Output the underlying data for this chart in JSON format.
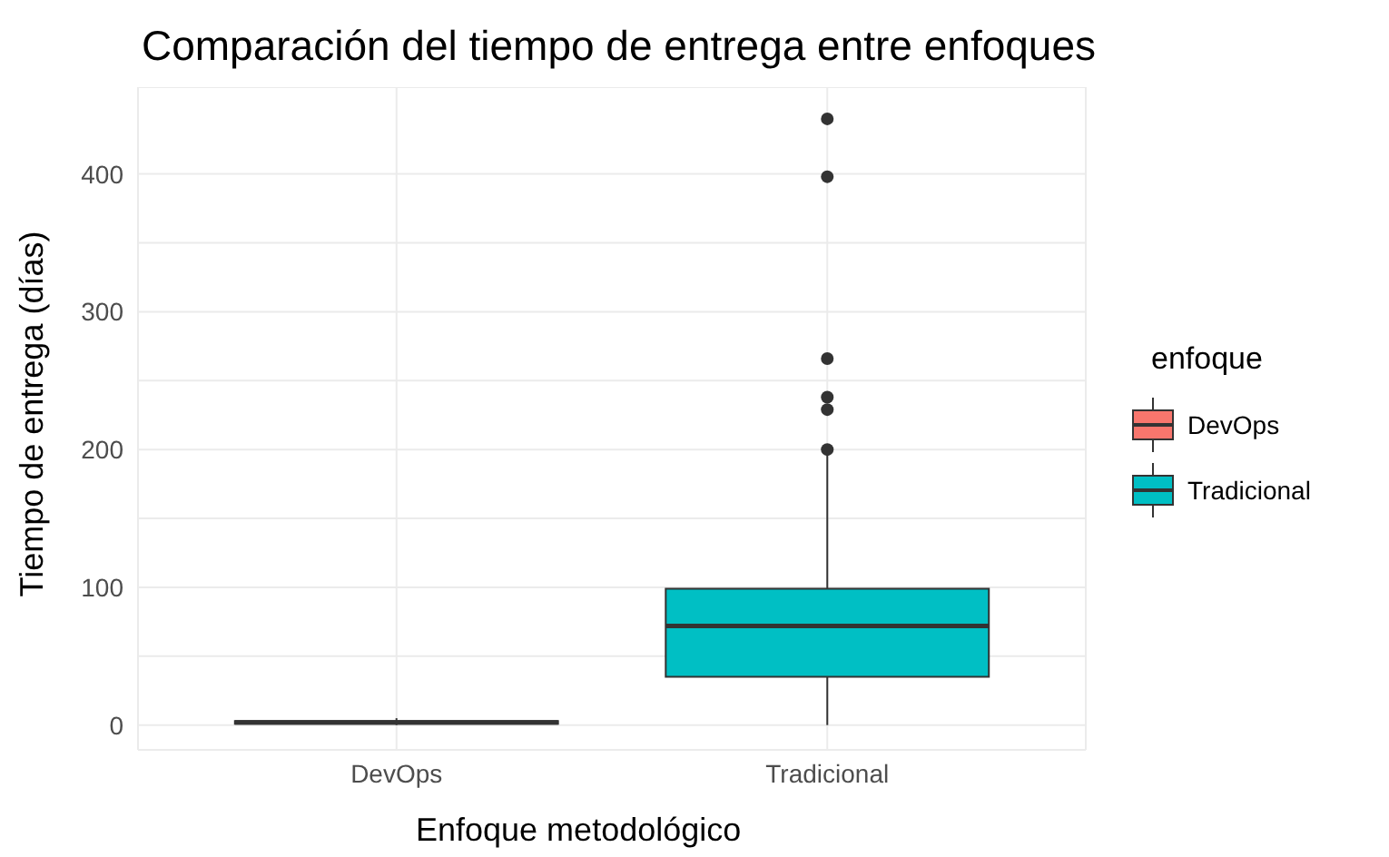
{
  "chart_data": {
    "type": "box",
    "title": "Comparación del tiempo de entrega entre enfoques",
    "xlabel": "Enfoque metodológico",
    "ylabel": "Tiempo de entrega (días)",
    "legend_title": "enfoque",
    "categories": [
      "DevOps",
      "Tradicional"
    ],
    "series": [
      {
        "name": "DevOps",
        "color": "#f8766d",
        "boxes": [
          {
            "low": 0,
            "q1": 1,
            "median": 2,
            "q3": 3,
            "high": 5
          },
          null
        ]
      },
      {
        "name": "Tradicional",
        "color": "#00bfc4",
        "boxes": [
          null,
          {
            "low": 0,
            "q1": 35,
            "median": 72,
            "q3": 99,
            "high": 197,
            "outliers": [
              200,
              229,
              238,
              266,
              398,
              440
            ]
          }
        ]
      }
    ],
    "ylim": [
      -18,
      463
    ],
    "yticks": [
      0,
      {
        "value": 50,
        "label": null
      },
      100,
      {
        "value": 150,
        "label": null
      },
      200,
      {
        "value": 250,
        "label": null
      },
      300,
      {
        "value": 350,
        "label": null
      },
      400
    ],
    "grid": true,
    "legend": "right"
  }
}
